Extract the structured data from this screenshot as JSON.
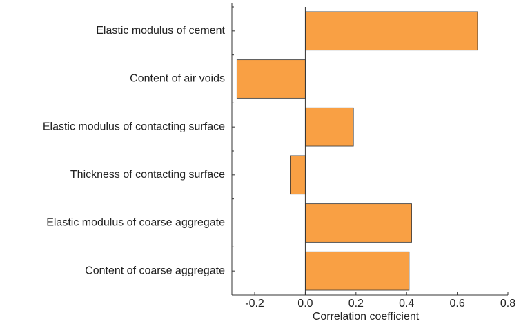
{
  "chart_data": {
    "type": "barh",
    "xlabel": "Correlation coefficient",
    "categories": [
      "Elastic modulus of cement",
      "Content of air voids",
      "Elastic modulus of contacting surface",
      "Thickness of contacting surface",
      "Elastic modulus of coarse aggregate",
      "Content of coarse aggregate"
    ],
    "values": [
      0.68,
      -0.27,
      0.19,
      -0.06,
      0.42,
      0.41
    ],
    "color": "#f9a044",
    "xlim": [
      -0.29,
      0.8
    ],
    "xticks": [
      -0.2,
      {
        "value": 0,
        "label": "0.0"
      },
      0.2,
      0.4,
      0.6,
      0.8
    ]
  }
}
